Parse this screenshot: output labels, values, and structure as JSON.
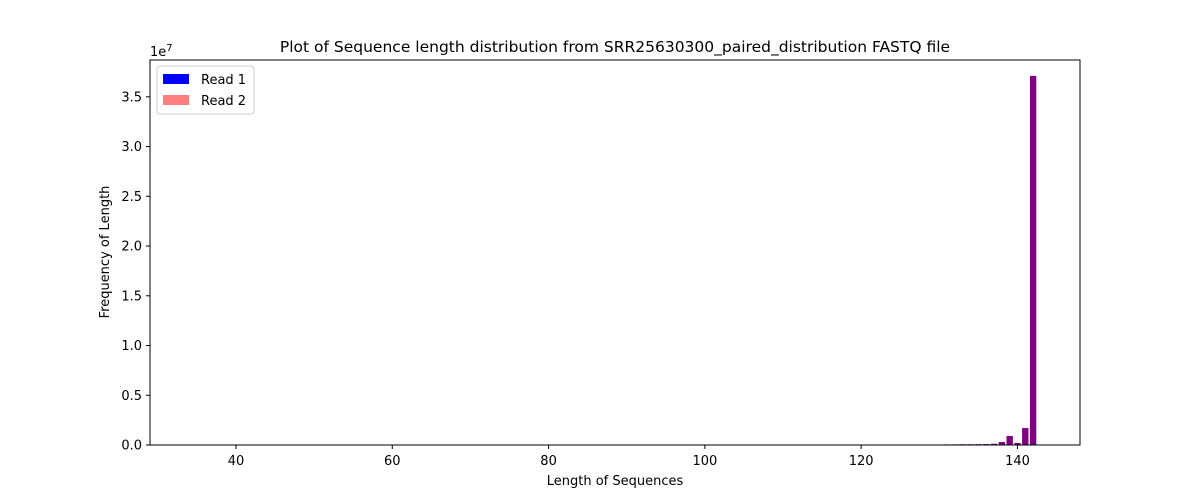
{
  "chart_data": {
    "type": "bar",
    "title": "Plot of Sequence length distribution from SRR25630300_paired_distribution FASTQ file",
    "xlabel": "Length of Sequences",
    "ylabel": "Frequency of Length",
    "y_multiplier_label": "1e7",
    "xlim": [
      29,
      148
    ],
    "ylim": [
      0,
      38700000
    ],
    "x_ticks": [
      40,
      60,
      80,
      100,
      120,
      140
    ],
    "x_tick_labels": [
      "40",
      "60",
      "80",
      "100",
      "120",
      "140"
    ],
    "y_ticks": [
      0,
      5000000,
      10000000,
      15000000,
      20000000,
      25000000,
      30000000,
      35000000
    ],
    "y_tick_labels": [
      "0.0",
      "0.5",
      "1.0",
      "1.5",
      "2.0",
      "2.5",
      "3.0",
      "3.5"
    ],
    "grid": false,
    "legend_position": "top-left",
    "x": [
      127,
      128,
      129,
      130,
      131,
      132,
      133,
      134,
      135,
      136,
      137,
      138,
      139,
      140,
      141,
      142
    ],
    "series": [
      {
        "name": "Read 1",
        "color": "#0000ff",
        "opacity": 1.0,
        "values": [
          40000,
          40000,
          50000,
          50000,
          60000,
          60000,
          70000,
          70000,
          80000,
          90000,
          120000,
          300000,
          900000,
          200000,
          1700000,
          37100000
        ]
      },
      {
        "name": "Read 2",
        "color": "#ff0000",
        "opacity": 0.5,
        "values": [
          40000,
          40000,
          50000,
          50000,
          60000,
          60000,
          70000,
          70000,
          80000,
          90000,
          120000,
          300000,
          900000,
          200000,
          1700000,
          37100000
        ]
      }
    ]
  }
}
